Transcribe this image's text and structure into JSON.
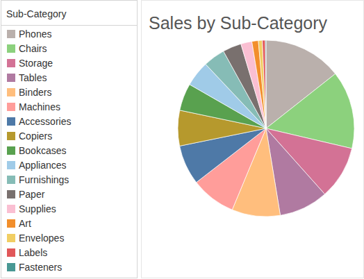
{
  "chart_data": {
    "type": "pie",
    "title": "Sales by Sub-Category",
    "legend_title": "Sub-Category",
    "categories": [
      "Phones",
      "Chairs",
      "Storage",
      "Tables",
      "Binders",
      "Machines",
      "Accessories",
      "Copiers",
      "Bookcases",
      "Appliances",
      "Furnishings",
      "Paper",
      "Supplies",
      "Art",
      "Envelopes",
      "Labels",
      "Fasteners"
    ],
    "values": [
      330007,
      328449,
      223844,
      206966,
      203413,
      189239,
      167380,
      149528,
      114880,
      107532,
      91705,
      78479,
      46674,
      27119,
      16476,
      12486,
      3024
    ],
    "colors": [
      "#bab0ac",
      "#8cd17d",
      "#d37295",
      "#b07aa1",
      "#ffbe7d",
      "#ff9d9a",
      "#4e79a7",
      "#b6992d",
      "#59a14f",
      "#a0cbe8",
      "#86bcb6",
      "#79706e",
      "#fabfd2",
      "#f28e2b",
      "#f1ce63",
      "#e15759",
      "#499894"
    ],
    "legend": "left"
  }
}
